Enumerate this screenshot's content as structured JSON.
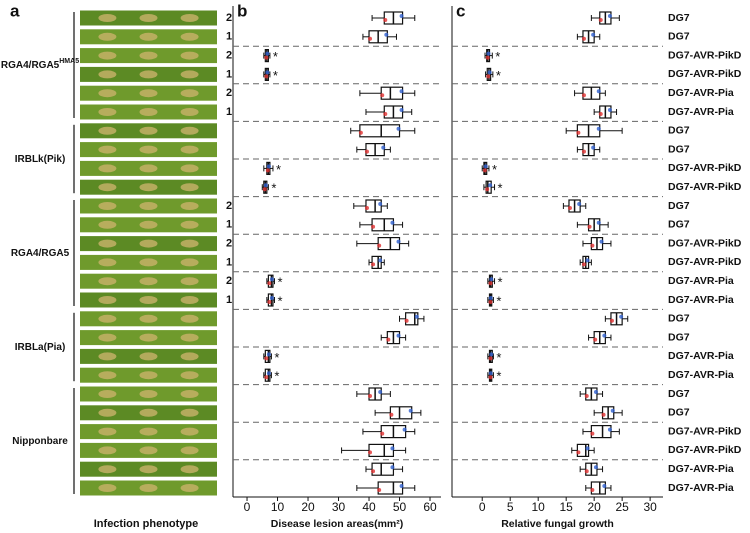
{
  "panel_a": {
    "label": "a",
    "xlabel": "Infection phenotype",
    "groups": [
      {
        "name": "RGA4/RGA5",
        "sup": "HMA5"
      },
      {
        "name": "IRBLk(Pik)"
      },
      {
        "name": "RGA4/RGA5"
      },
      {
        "name": "IRBLa(Pia)"
      },
      {
        "name": "Nipponbare"
      }
    ],
    "replicates": [
      "2",
      "1",
      "2",
      "1",
      "2",
      "1",
      null,
      null,
      null,
      null,
      "2",
      "1",
      "2",
      "1",
      "2",
      "1",
      null,
      null,
      null,
      null,
      null,
      null,
      null,
      null,
      null,
      null
    ]
  },
  "chart_data": [
    {
      "type": "box",
      "label": "b",
      "xlabel": "Disease lesion areas(mm²)",
      "xlim": [
        -4.6,
        63.6
      ],
      "xticks": [
        0,
        10,
        20,
        30,
        40,
        50,
        60
      ],
      "boxes": [
        {
          "min": 41,
          "q1": 45,
          "median": 48,
          "q3": 51,
          "max": 55
        },
        {
          "min": 38,
          "q1": 40,
          "median": 43,
          "q3": 46,
          "max": 49
        },
        {
          "min": 5.5,
          "q1": 6,
          "median": 6.5,
          "q3": 7,
          "max": 7.5
        },
        {
          "min": 5.5,
          "q1": 6,
          "median": 6.5,
          "q3": 7,
          "max": 7.5
        },
        {
          "min": 37,
          "q1": 44,
          "median": 47,
          "q3": 51,
          "max": 55
        },
        {
          "min": 39,
          "q1": 45,
          "median": 48,
          "q3": 51,
          "max": 54
        },
        {
          "min": 34,
          "q1": 37,
          "median": 44,
          "q3": 50,
          "max": 55
        },
        {
          "min": 36,
          "q1": 39,
          "median": 42,
          "q3": 45,
          "max": 47
        },
        {
          "min": 5.5,
          "q1": 6.5,
          "median": 7,
          "q3": 7.5,
          "max": 8.5
        },
        {
          "min": 5,
          "q1": 5.5,
          "median": 6,
          "q3": 6.5,
          "max": 7
        },
        {
          "min": 35,
          "q1": 39,
          "median": 42,
          "q3": 44,
          "max": 46
        },
        {
          "min": 37,
          "q1": 41,
          "median": 45,
          "q3": 48,
          "max": 51
        },
        {
          "min": 36,
          "q1": 43,
          "median": 47,
          "q3": 50,
          "max": 53
        },
        {
          "min": 40,
          "q1": 41,
          "median": 43,
          "q3": 44,
          "max": 45
        },
        {
          "min": 6.5,
          "q1": 7,
          "median": 8,
          "q3": 8.5,
          "max": 9
        },
        {
          "min": 6.5,
          "q1": 7,
          "median": 8,
          "q3": 8.5,
          "max": 9
        },
        {
          "min": 50,
          "q1": 52,
          "median": 55,
          "q3": 56,
          "max": 58
        },
        {
          "min": 44,
          "q1": 46,
          "median": 48,
          "q3": 50,
          "max": 52
        },
        {
          "min": 5.5,
          "q1": 6,
          "median": 7,
          "q3": 7.5,
          "max": 8
        },
        {
          "min": 5.5,
          "q1": 6,
          "median": 7,
          "q3": 7.5,
          "max": 8
        },
        {
          "min": 36,
          "q1": 40,
          "median": 42,
          "q3": 44,
          "max": 47
        },
        {
          "min": 42,
          "q1": 47,
          "median": 50,
          "q3": 54,
          "max": 57
        },
        {
          "min": 38,
          "q1": 44,
          "median": 48,
          "q3": 52,
          "max": 55
        },
        {
          "min": 31,
          "q1": 40,
          "median": 45,
          "q3": 48,
          "max": 52
        },
        {
          "min": 39,
          "q1": 41,
          "median": 44,
          "q3": 48,
          "max": 51
        },
        {
          "min": 36,
          "q1": 43,
          "median": 48,
          "q3": 51,
          "max": 55
        }
      ],
      "significance": [
        null,
        null,
        "*",
        "*",
        null,
        null,
        null,
        null,
        "*",
        "*",
        null,
        null,
        null,
        null,
        "*",
        "*",
        null,
        null,
        "*",
        "*",
        null,
        null,
        null,
        null,
        null,
        null
      ]
    },
    {
      "type": "box",
      "label": "c",
      "xlabel": "Relative fungal growth",
      "xlim": [
        -5.4,
        32.3
      ],
      "xticks": [
        0,
        5,
        10,
        15,
        20,
        25,
        30
      ],
      "categories": [
        "DG7",
        "DG7",
        "DG7-AVR-PikD",
        "DG7-AVR-PikD",
        "DG7-AVR-Pia",
        "DG7-AVR-Pia",
        "DG7",
        "DG7",
        "DG7-AVR-PikD",
        "DG7-AVR-PikD",
        "DG7",
        "DG7",
        "DG7-AVR-PikD",
        "DG7-AVR-PikD",
        "DG7-AVR-Pia",
        "DG7-AVR-Pia",
        "DG7",
        "DG7",
        "DG7-AVR-Pia",
        "DG7-AVR-Pia",
        "DG7",
        "DG7",
        "DG7-AVR-PikD",
        "DG7-AVR-PikD",
        "DG7-AVR-Pia",
        "DG7-AVR-Pia"
      ],
      "boxes": [
        {
          "min": 19.5,
          "q1": 21,
          "median": 22,
          "q3": 23,
          "max": 24.5
        },
        {
          "min": 17,
          "q1": 18,
          "median": 19,
          "q3": 20,
          "max": 21
        },
        {
          "min": 0.5,
          "q1": 0.8,
          "median": 1,
          "q3": 1.3,
          "max": 1.8
        },
        {
          "min": 0.6,
          "q1": 0.9,
          "median": 1.2,
          "q3": 1.5,
          "max": 1.9
        },
        {
          "min": 16.5,
          "q1": 18,
          "median": 19.5,
          "q3": 21,
          "max": 22
        },
        {
          "min": 20,
          "q1": 21,
          "median": 22,
          "q3": 23,
          "max": 24
        },
        {
          "min": 15,
          "q1": 17,
          "median": 19,
          "q3": 21,
          "max": 25
        },
        {
          "min": 17,
          "q1": 18,
          "median": 19,
          "q3": 20,
          "max": 21
        },
        {
          "min": 0,
          "q1": 0.3,
          "median": 0.5,
          "q3": 0.8,
          "max": 1.2
        },
        {
          "min": 0.3,
          "q1": 0.7,
          "median": 1,
          "q3": 1.6,
          "max": 2.2
        },
        {
          "min": 14.5,
          "q1": 15.5,
          "median": 16.5,
          "q3": 17.5,
          "max": 18.5
        },
        {
          "min": 17,
          "q1": 19,
          "median": 20,
          "q3": 21,
          "max": 22.5
        },
        {
          "min": 18,
          "q1": 19.5,
          "median": 20.5,
          "q3": 21.5,
          "max": 23
        },
        {
          "min": 17.5,
          "q1": 18,
          "median": 18.5,
          "q3": 19,
          "max": 19.5
        },
        {
          "min": 1,
          "q1": 1.3,
          "median": 1.5,
          "q3": 1.8,
          "max": 2.2
        },
        {
          "min": 1,
          "q1": 1.3,
          "median": 1.5,
          "q3": 1.7,
          "max": 2
        },
        {
          "min": 22,
          "q1": 23,
          "median": 24,
          "q3": 25,
          "max": 26
        },
        {
          "min": 19,
          "q1": 20,
          "median": 21,
          "q3": 22,
          "max": 23
        },
        {
          "min": 1,
          "q1": 1.3,
          "median": 1.5,
          "q3": 1.8,
          "max": 2
        },
        {
          "min": 1,
          "q1": 1.3,
          "median": 1.5,
          "q3": 1.7,
          "max": 2
        },
        {
          "min": 17.5,
          "q1": 18.5,
          "median": 19.5,
          "q3": 20.5,
          "max": 21.5
        },
        {
          "min": 20,
          "q1": 21.5,
          "median": 22.5,
          "q3": 23.5,
          "max": 25
        },
        {
          "min": 18,
          "q1": 19.5,
          "median": 21.5,
          "q3": 23,
          "max": 24.5
        },
        {
          "min": 16,
          "q1": 17,
          "median": 18.5,
          "q3": 19,
          "max": 20
        },
        {
          "min": 17.5,
          "q1": 18.5,
          "median": 19.5,
          "q3": 20.5,
          "max": 21.5
        },
        {
          "min": 18.5,
          "q1": 19.5,
          "median": 21,
          "q3": 22,
          "max": 23
        }
      ],
      "significance": [
        null,
        null,
        "*",
        "*",
        null,
        null,
        null,
        null,
        "*",
        "*",
        null,
        null,
        null,
        null,
        "*",
        "*",
        null,
        null,
        "*",
        "*",
        null,
        null,
        null,
        null,
        null,
        null
      ]
    }
  ]
}
